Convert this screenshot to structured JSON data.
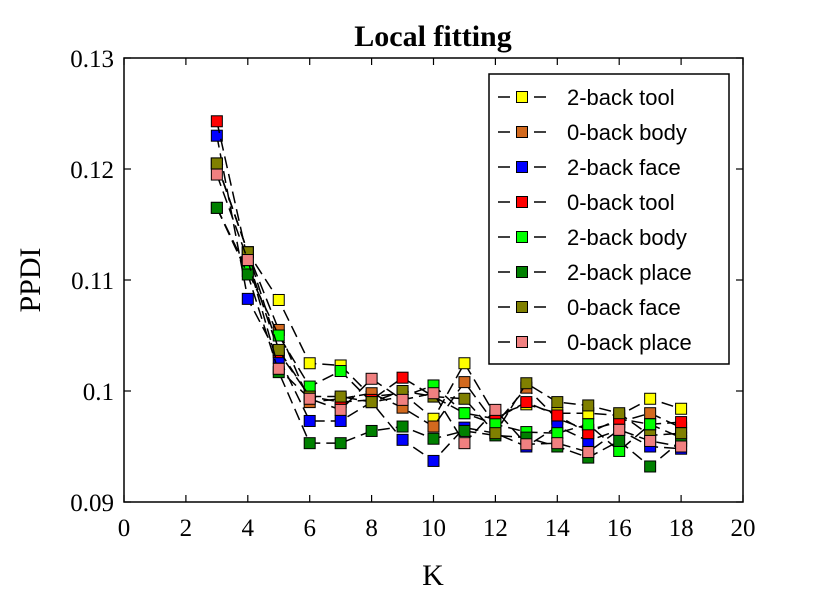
{
  "chart_data": {
    "type": "line",
    "title": "Local fitting",
    "xlabel": "K",
    "ylabel": "PPDI",
    "xlim": [
      0,
      20
    ],
    "ylim": [
      0.09,
      0.13
    ],
    "xticks": [
      0,
      2,
      4,
      6,
      8,
      10,
      12,
      14,
      16,
      18,
      20
    ],
    "xtick_labels": [
      "0",
      "2",
      "4",
      "6",
      "8",
      "10",
      "12",
      "14",
      "16",
      "18",
      "20"
    ],
    "yticks": [
      0.09,
      0.1,
      0.11,
      0.12,
      0.13
    ],
    "ytick_labels": [
      "0.09",
      "0.1",
      "0.11",
      "0.12",
      "0.13"
    ],
    "grid": false,
    "legend_position": "top-right",
    "line_style": "dashed",
    "marker": "square",
    "x": [
      3,
      4,
      5,
      6,
      7,
      8,
      9,
      10,
      11,
      12,
      13,
      14,
      15,
      16,
      17,
      18
    ],
    "series": [
      {
        "name": "2-back tool",
        "color": "#ffff00",
        "values": [
          0.1205,
          0.1125,
          0.1082,
          0.1025,
          0.1023,
          0.0995,
          0.0998,
          0.0975,
          0.1025,
          0.0978,
          0.0988,
          0.098,
          0.098,
          0.0978,
          0.0993,
          0.0984
        ]
      },
      {
        "name": "0-back body",
        "color": "#d2691e",
        "values": [
          0.1205,
          0.1125,
          0.1055,
          0.099,
          0.0993,
          0.0998,
          0.0985,
          0.0968,
          0.1008,
          0.097,
          0.1003,
          0.0975,
          0.0965,
          0.0972,
          0.098,
          0.0967
        ]
      },
      {
        "name": "2-back face",
        "color": "#0000ff",
        "values": [
          0.123,
          0.1083,
          0.103,
          0.0973,
          0.0973,
          0.099,
          0.0956,
          0.0937,
          0.0967,
          0.0962,
          0.095,
          0.0968,
          0.0955,
          0.0965,
          0.095,
          0.0948
        ]
      },
      {
        "name": "0-back tool",
        "color": "#ff0000",
        "values": [
          0.1243,
          0.1118,
          0.1035,
          0.0995,
          0.099,
          0.0992,
          0.1012,
          0.0995,
          0.098,
          0.0975,
          0.099,
          0.0978,
          0.0962,
          0.0975,
          0.097,
          0.0972
        ]
      },
      {
        "name": "2-back body",
        "color": "#00ff00",
        "values": [
          0.1165,
          0.1108,
          0.105,
          0.1004,
          0.1018,
          0.099,
          0.0995,
          0.1005,
          0.098,
          0.097,
          0.0963,
          0.0962,
          0.097,
          0.0946,
          0.097,
          0.0958
        ]
      },
      {
        "name": "2-back place",
        "color": "#008000",
        "values": [
          0.1165,
          0.1105,
          0.1017,
          0.0953,
          0.0953,
          0.0964,
          0.0968,
          0.0957,
          0.0964,
          0.096,
          0.0958,
          0.095,
          0.094,
          0.0955,
          0.0932,
          0.0955
        ]
      },
      {
        "name": "0-back face",
        "color": "#808000",
        "values": [
          0.1205,
          0.1125,
          0.1037,
          0.0995,
          0.0995,
          0.099,
          0.1,
          0.0995,
          0.0993,
          0.0962,
          0.1007,
          0.099,
          0.0987,
          0.098,
          0.096,
          0.0962
        ]
      },
      {
        "name": "0-back place",
        "color": "#f08080",
        "values": [
          0.1195,
          0.1118,
          0.102,
          0.0993,
          0.0983,
          0.1011,
          0.0992,
          0.0998,
          0.0953,
          0.0983,
          0.0952,
          0.0953,
          0.0945,
          0.0965,
          0.0955,
          0.095
        ]
      }
    ]
  }
}
